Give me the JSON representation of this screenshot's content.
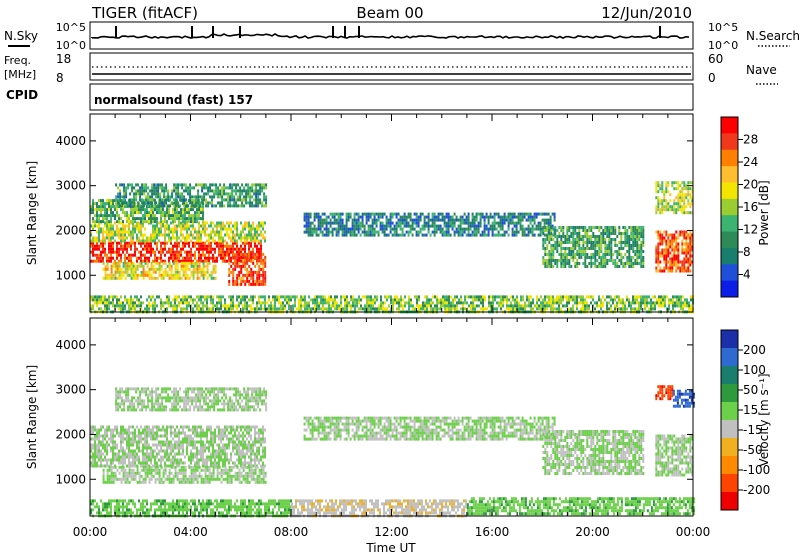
{
  "header": {
    "title_left": "TIGER (fitACF)",
    "title_center": "Beam 00",
    "title_right": "12/Jun/2010"
  },
  "summary": {
    "nsky_label": "N.Sky",
    "nsearch_label": "N.Search",
    "log_ticks": [
      "10^5",
      "10^0"
    ],
    "freq_label_1": "Freq.",
    "freq_label_2": "[MHz]",
    "freq_ticks": [
      "18",
      "8"
    ],
    "nave_label": "Nave",
    "nave_ticks": [
      "60",
      "0"
    ],
    "cpid_label": "CPID",
    "cpid_text": "normalsound (fast) 157"
  },
  "colorbars": {
    "power": {
      "label": "Power [dB]",
      "ticks": [
        "28",
        "24",
        "20",
        "16",
        "12",
        "8",
        "4"
      ],
      "colors": [
        "#ff0000",
        "#f0381c",
        "#ff7f00",
        "#ffbe2f",
        "#f4e500",
        "#9acd32",
        "#3cb371",
        "#2e8b57",
        "#1a7e6e",
        "#1f4fd8",
        "#0a1ee8"
      ]
    },
    "velocity": {
      "label": "Velocity [m s⁻¹]",
      "ticks": [
        "200",
        "100",
        "50",
        "15",
        "-15",
        "-50",
        "-100",
        "-200"
      ],
      "colors": [
        "#1a2fa8",
        "#2e6ad0",
        "#1a7e6e",
        "#2e9a3e",
        "#6cd04a",
        "#c0c0c0",
        "#f0b020",
        "#ff8a00",
        "#ff4400",
        "#ee0000"
      ]
    }
  },
  "chart_data": [
    {
      "type": "heatmap",
      "name": "Power",
      "xlabel": "Time UT",
      "ylabel": "Slant Range [km]",
      "x_ticks": [
        "00:00",
        "04:00",
        "08:00",
        "12:00",
        "16:00",
        "20:00",
        "00:00"
      ],
      "y_ticks": [
        1000,
        2000,
        3000,
        4000
      ],
      "xlim": [
        0,
        24
      ],
      "ylim": [
        180,
        4600
      ],
      "colorbar_range": [
        0,
        30
      ],
      "regions": [
        {
          "x": [
            0.0,
            6.8
          ],
          "y": [
            1300,
            1750
          ],
          "value": 27
        },
        {
          "x": [
            0.0,
            7.0
          ],
          "y": [
            1750,
            2200
          ],
          "value": 16
        },
        {
          "x": [
            0.0,
            4.5
          ],
          "y": [
            2200,
            2700
          ],
          "value": 12
        },
        {
          "x": [
            1.0,
            7.0
          ],
          "y": [
            2550,
            3050
          ],
          "value": 10
        },
        {
          "x": [
            0.5,
            5.0
          ],
          "y": [
            900,
            1300
          ],
          "value": 18
        },
        {
          "x": [
            5.5,
            7.0
          ],
          "y": [
            800,
            1500
          ],
          "value": 26
        },
        {
          "x": [
            0.0,
            24.0
          ],
          "y": [
            200,
            550
          ],
          "value": 14
        },
        {
          "x": [
            8.5,
            18.5
          ],
          "y": [
            1900,
            2400
          ],
          "value": 8
        },
        {
          "x": [
            18.0,
            22.0
          ],
          "y": [
            1200,
            2100
          ],
          "value": 11
        },
        {
          "x": [
            22.5,
            24.0
          ],
          "y": [
            1100,
            2000
          ],
          "value": 25
        },
        {
          "x": [
            22.5,
            24.0
          ],
          "y": [
            2400,
            3100
          ],
          "value": 16
        }
      ]
    },
    {
      "type": "heatmap",
      "name": "Velocity",
      "xlabel": "Time UT",
      "ylabel": "Slant Range [km]",
      "x_ticks": [
        "00:00",
        "04:00",
        "08:00",
        "12:00",
        "16:00",
        "20:00",
        "00:00"
      ],
      "y_ticks": [
        1000,
        2000,
        3000,
        4000
      ],
      "xlim": [
        0,
        24
      ],
      "ylim": [
        180,
        4600
      ],
      "colorbar_range": [
        -200,
        200
      ],
      "regions": [
        {
          "x": [
            0.0,
            7.0
          ],
          "y": [
            1300,
            2200
          ],
          "value": 0
        },
        {
          "x": [
            1.0,
            7.0
          ],
          "y": [
            2550,
            3050
          ],
          "value": 0
        },
        {
          "x": [
            0.5,
            7.0
          ],
          "y": [
            900,
            1300
          ],
          "value": 0
        },
        {
          "x": [
            0.0,
            8.0
          ],
          "y": [
            200,
            550
          ],
          "value": 30
        },
        {
          "x": [
            8.5,
            18.5
          ],
          "y": [
            1900,
            2400
          ],
          "value": 0
        },
        {
          "x": [
            8.0,
            15.0
          ],
          "y": [
            200,
            550
          ],
          "value": -30
        },
        {
          "x": [
            15.0,
            24.0
          ],
          "y": [
            200,
            600
          ],
          "value": 30
        },
        {
          "x": [
            18.0,
            22.0
          ],
          "y": [
            1100,
            2100
          ],
          "value": 0
        },
        {
          "x": [
            22.5,
            24.0
          ],
          "y": [
            1100,
            2000
          ],
          "value": 0
        },
        {
          "x": [
            22.5,
            23.2
          ],
          "y": [
            2800,
            3100
          ],
          "value": -150
        },
        {
          "x": [
            23.2,
            24.0
          ],
          "y": [
            2600,
            3000
          ],
          "value": 150
        }
      ]
    }
  ]
}
